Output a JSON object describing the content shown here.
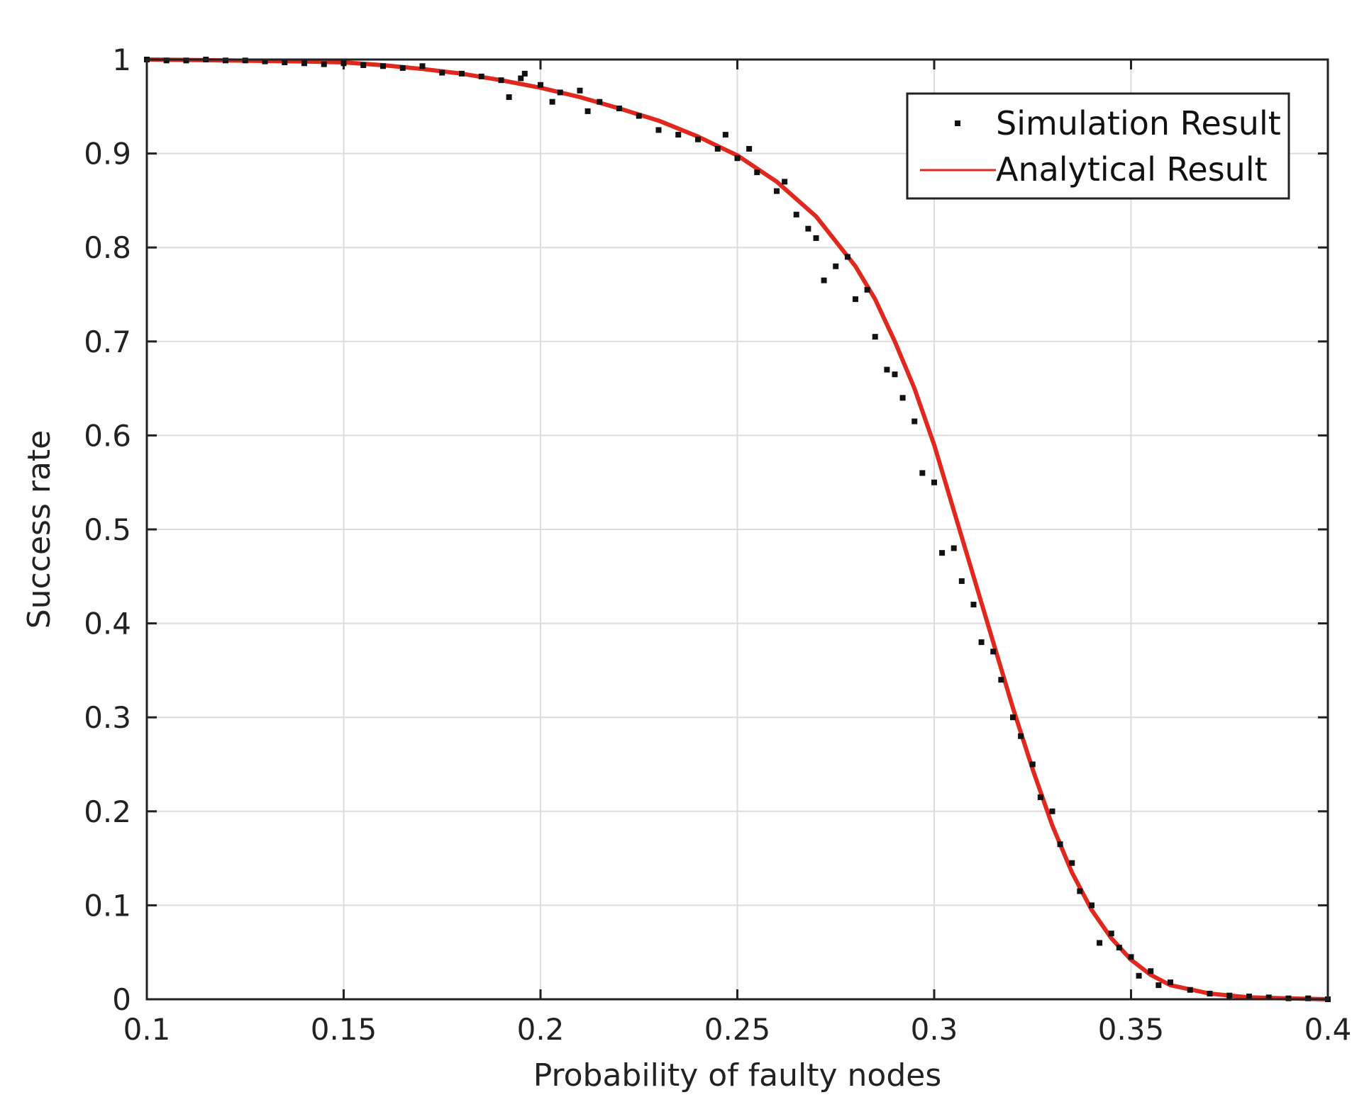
{
  "chart_data": {
    "type": "line",
    "title": "",
    "xlabel": "Probability of faulty nodes",
    "ylabel": "Success rate",
    "xlim": [
      0.1,
      0.4
    ],
    "ylim": [
      0,
      1
    ],
    "xticks": [
      0.1,
      0.15,
      0.2,
      0.25,
      0.3,
      0.35,
      0.4
    ],
    "xtick_labels": [
      "0.1",
      "0.15",
      "0.2",
      "0.25",
      "0.3",
      "0.35",
      "0.4"
    ],
    "yticks": [
      0,
      0.1,
      0.2,
      0.3,
      0.4,
      0.5,
      0.6,
      0.7,
      0.8,
      0.9,
      1
    ],
    "ytick_labels": [
      "0",
      "0.1",
      "0.2",
      "0.3",
      "0.4",
      "0.5",
      "0.6",
      "0.7",
      "0.8",
      "0.9",
      "1"
    ],
    "grid": true,
    "legend": "top-right",
    "series": [
      {
        "name": "Simulation Result",
        "kind": "scatter",
        "color": "#111111",
        "x": [
          0.1,
          0.105,
          0.11,
          0.115,
          0.12,
          0.125,
          0.13,
          0.135,
          0.14,
          0.145,
          0.15,
          0.155,
          0.16,
          0.165,
          0.17,
          0.175,
          0.18,
          0.185,
          0.19,
          0.195,
          0.2,
          0.205,
          0.21,
          0.215,
          0.22,
          0.225,
          0.23,
          0.235,
          0.24,
          0.245,
          0.25,
          0.255,
          0.26,
          0.265,
          0.27,
          0.275,
          0.28,
          0.285,
          0.29,
          0.295,
          0.3,
          0.305,
          0.31,
          0.315,
          0.32,
          0.325,
          0.33,
          0.335,
          0.34,
          0.345,
          0.35,
          0.355,
          0.36,
          0.365,
          0.37,
          0.375,
          0.38,
          0.385,
          0.39,
          0.395,
          0.4,
          0.192,
          0.196,
          0.203,
          0.212,
          0.247,
          0.253,
          0.262,
          0.268,
          0.272,
          0.278,
          0.283,
          0.288,
          0.292,
          0.297,
          0.302,
          0.307,
          0.312,
          0.317,
          0.322,
          0.327,
          0.332,
          0.337,
          0.342,
          0.347,
          0.352,
          0.357
        ],
        "y": [
          1.0,
          0.999,
          0.999,
          1.0,
          0.999,
          0.999,
          0.998,
          0.997,
          0.996,
          0.995,
          0.996,
          0.994,
          0.993,
          0.991,
          0.993,
          0.986,
          0.985,
          0.982,
          0.978,
          0.98,
          0.973,
          0.965,
          0.967,
          0.955,
          0.948,
          0.94,
          0.925,
          0.92,
          0.915,
          0.905,
          0.895,
          0.88,
          0.86,
          0.835,
          0.81,
          0.78,
          0.745,
          0.705,
          0.665,
          0.615,
          0.55,
          0.48,
          0.42,
          0.37,
          0.3,
          0.25,
          0.2,
          0.145,
          0.1,
          0.07,
          0.045,
          0.03,
          0.018,
          0.01,
          0.006,
          0.004,
          0.003,
          0.002,
          0.001,
          0.001,
          0.0,
          0.96,
          0.985,
          0.955,
          0.945,
          0.92,
          0.905,
          0.87,
          0.82,
          0.765,
          0.79,
          0.755,
          0.67,
          0.64,
          0.56,
          0.475,
          0.445,
          0.38,
          0.34,
          0.28,
          0.215,
          0.165,
          0.115,
          0.06,
          0.055,
          0.025,
          0.015
        ]
      },
      {
        "name": "Analytical Result",
        "kind": "line",
        "color": "#e0281e",
        "x": [
          0.1,
          0.12,
          0.14,
          0.15,
          0.16,
          0.17,
          0.18,
          0.19,
          0.2,
          0.21,
          0.22,
          0.23,
          0.24,
          0.25,
          0.26,
          0.27,
          0.28,
          0.285,
          0.29,
          0.295,
          0.3,
          0.305,
          0.31,
          0.315,
          0.32,
          0.325,
          0.33,
          0.335,
          0.34,
          0.345,
          0.35,
          0.355,
          0.36,
          0.37,
          0.38,
          0.39,
          0.4
        ],
        "y": [
          1.0,
          0.999,
          0.998,
          0.997,
          0.994,
          0.99,
          0.985,
          0.978,
          0.97,
          0.96,
          0.948,
          0.935,
          0.918,
          0.898,
          0.87,
          0.833,
          0.78,
          0.745,
          0.7,
          0.65,
          0.59,
          0.52,
          0.45,
          0.38,
          0.31,
          0.245,
          0.185,
          0.135,
          0.095,
          0.065,
          0.042,
          0.026,
          0.015,
          0.006,
          0.002,
          0.001,
          0.0
        ]
      }
    ]
  }
}
